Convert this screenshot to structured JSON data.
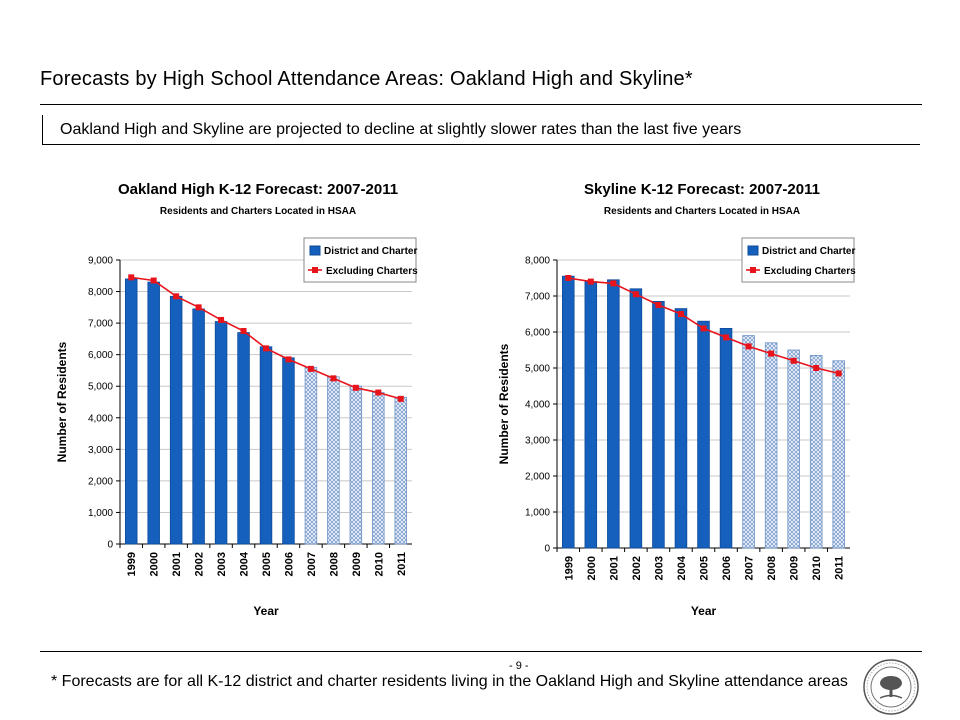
{
  "page": {
    "title": "Forecasts by High School Attendance Areas: Oakland High and Skyline*",
    "subtitle": "Oakland High and Skyline are projected to decline at slightly slower rates than the last five years",
    "page_number": "- 9 -",
    "footnote": "* Forecasts are for all K-12 district and charter residents living in the Oakland High and Skyline attendance areas"
  },
  "chart_data": [
    {
      "type": "bar",
      "title": "Oakland High K-12 Forecast: 2007-2011",
      "subtitle": "Residents and Charters Located in HSAA",
      "xlabel": "Year",
      "ylabel": "Number of Residents",
      "ylim": [
        0,
        9000
      ],
      "yticks": [
        0,
        1000,
        2000,
        3000,
        4000,
        5000,
        6000,
        7000,
        8000,
        9000
      ],
      "ytick_labels": [
        "0",
        "1,000",
        "2,000",
        "3,000",
        "4,000",
        "5,000",
        "6,000",
        "7,000",
        "8,000",
        "9,000"
      ],
      "categories": [
        "1999",
        "2000",
        "2001",
        "2002",
        "2003",
        "2004",
        "2005",
        "2006",
        "2007",
        "2008",
        "2009",
        "2010",
        "2011"
      ],
      "legend_position": "top-right",
      "series": [
        {
          "name": "District and Charter",
          "kind": "bar",
          "color": "#1560bd",
          "forecast_from_index": 8,
          "values": [
            8400,
            8300,
            7850,
            7450,
            7050,
            6700,
            6250,
            5900,
            5600,
            5300,
            5000,
            4800,
            4650
          ]
        },
        {
          "name": "Excluding Charters",
          "kind": "line",
          "color": "#e8141c",
          "values": [
            8450,
            8350,
            7850,
            7500,
            7100,
            6750,
            6200,
            5850,
            5550,
            5250,
            4950,
            4800,
            4600
          ]
        }
      ]
    },
    {
      "type": "bar",
      "title": "Skyline K-12 Forecast: 2007-2011",
      "subtitle": "Residents and Charters Located in HSAA",
      "xlabel": "Year",
      "ylabel": "Number of Residents",
      "ylim": [
        0,
        8000
      ],
      "yticks": [
        0,
        1000,
        2000,
        3000,
        4000,
        5000,
        6000,
        7000,
        8000
      ],
      "ytick_labels": [
        "0",
        "1,000",
        "2,000",
        "3,000",
        "4,000",
        "5,000",
        "6,000",
        "7,000",
        "8,000"
      ],
      "categories": [
        "1999",
        "2000",
        "2001",
        "2002",
        "2003",
        "2004",
        "2005",
        "2006",
        "2007",
        "2008",
        "2009",
        "2010",
        "2011"
      ],
      "legend_position": "top-right",
      "series": [
        {
          "name": "District and Charter",
          "kind": "bar",
          "color": "#1560bd",
          "forecast_from_index": 8,
          "values": [
            7550,
            7400,
            7450,
            7200,
            6850,
            6650,
            6300,
            6100,
            5900,
            5700,
            5500,
            5350,
            5200
          ]
        },
        {
          "name": "Excluding Charters",
          "kind": "line",
          "color": "#e8141c",
          "values": [
            7500,
            7400,
            7350,
            7050,
            6750,
            6500,
            6100,
            5850,
            5600,
            5400,
            5200,
            5000,
            4850
          ]
        }
      ]
    }
  ]
}
